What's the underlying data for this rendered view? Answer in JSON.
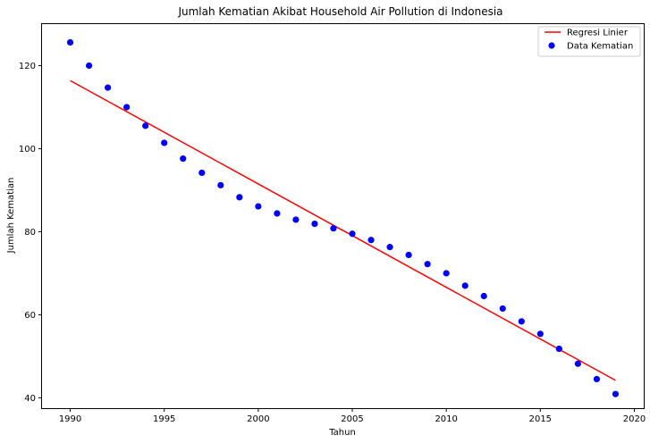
{
  "chart_data": {
    "type": "scatter",
    "title": "Jumlah Kematian Akibat Household Air Pollution di Indonesia",
    "xlabel": "Tahun",
    "ylabel": "Jumlah Kematian",
    "xlim": [
      1988.5,
      2020.5
    ],
    "ylim": [
      37.5,
      130
    ],
    "x_ticks": [
      1990,
      1995,
      2000,
      2005,
      2010,
      2015,
      2020
    ],
    "y_ticks": [
      40,
      60,
      80,
      100,
      120
    ],
    "grid": false,
    "legend_position": "top-right",
    "series": [
      {
        "name": "Data Kematian",
        "kind": "scatter",
        "color": "#0000ff",
        "x": [
          1990,
          1991,
          1992,
          1993,
          1994,
          1995,
          1996,
          1997,
          1998,
          1999,
          2000,
          2001,
          2002,
          2003,
          2004,
          2005,
          2006,
          2007,
          2008,
          2009,
          2010,
          2011,
          2012,
          2013,
          2014,
          2015,
          2016,
          2017,
          2018,
          2019
        ],
        "y": [
          125.6,
          120.0,
          114.7,
          110.0,
          105.5,
          101.4,
          97.6,
          94.2,
          91.2,
          88.3,
          86.1,
          84.4,
          82.9,
          81.9,
          80.8,
          79.5,
          78.0,
          76.3,
          74.4,
          72.2,
          70.0,
          67.0,
          64.5,
          61.5,
          58.4,
          55.4,
          51.8,
          48.2,
          44.5,
          40.9
        ]
      },
      {
        "name": "Regresi Linier",
        "kind": "line",
        "color": "#ff0000",
        "x": [
          1990,
          2019
        ],
        "y": [
          116.4,
          44.2
        ]
      }
    ]
  }
}
